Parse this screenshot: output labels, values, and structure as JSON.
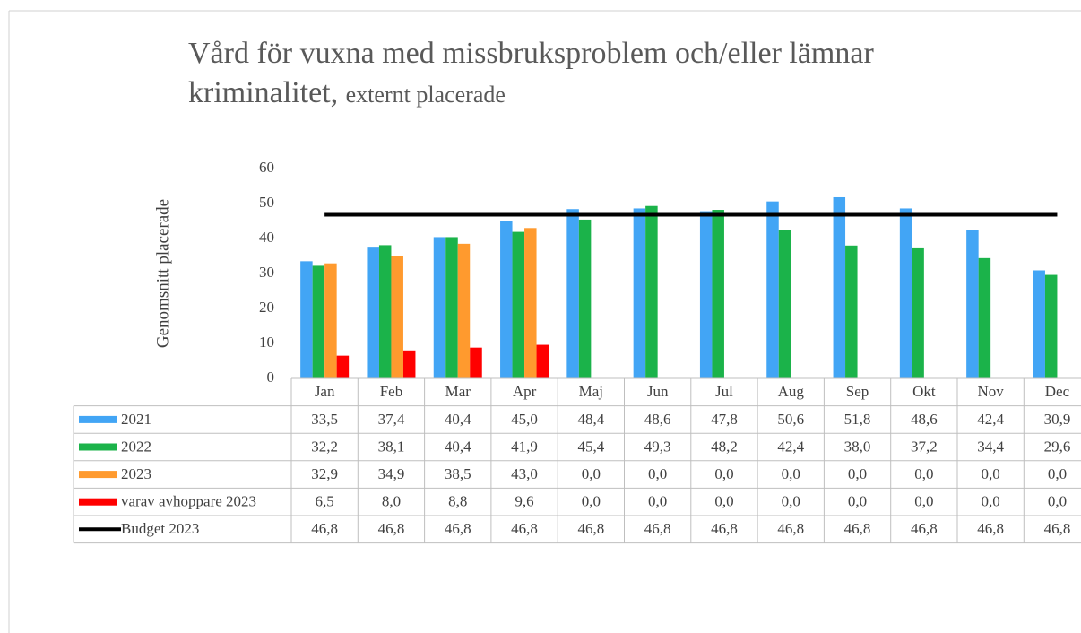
{
  "chart_data": {
    "type": "bar",
    "title": "Vård för vuxna med missbruksproblem och/eller lämnar kriminalitet,",
    "subtitle": "externt placerade",
    "y_label": "Genomsnitt placerade",
    "categories": [
      "Jan",
      "Feb",
      "Mar",
      "Apr",
      "Maj",
      "Jun",
      "Jul",
      "Aug",
      "Sep",
      "Okt",
      "Nov",
      "Dec"
    ],
    "ylim": [
      0,
      60
    ],
    "yticks": [
      0,
      10,
      20,
      30,
      40,
      50,
      60
    ],
    "data_table": true,
    "series": [
      {
        "name": "2021",
        "color": "#42a5f5",
        "kind": "bar",
        "values": [
          33.5,
          37.4,
          40.4,
          45.0,
          48.4,
          48.6,
          47.8,
          50.6,
          51.8,
          48.6,
          42.4,
          30.9
        ],
        "value_labels": [
          "33,5",
          "37,4",
          "40,4",
          "45,0",
          "48,4",
          "48,6",
          "47,8",
          "50,6",
          "51,8",
          "48,6",
          "42,4",
          "30,9"
        ]
      },
      {
        "name": "2022",
        "color": "#1bb34a",
        "kind": "bar",
        "values": [
          32.2,
          38.1,
          40.4,
          41.9,
          45.4,
          49.3,
          48.2,
          42.4,
          38.0,
          37.2,
          34.4,
          29.6
        ],
        "value_labels": [
          "32,2",
          "38,1",
          "40,4",
          "41,9",
          "45,4",
          "49,3",
          "48,2",
          "42,4",
          "38,0",
          "37,2",
          "34,4",
          "29,6"
        ]
      },
      {
        "name": "2023",
        "color": "#ff9a2e",
        "kind": "bar",
        "values": [
          32.9,
          34.9,
          38.5,
          43.0,
          0,
          0,
          0,
          0,
          0,
          0,
          0,
          0
        ],
        "value_labels": [
          "32,9",
          "34,9",
          "38,5",
          "43,0",
          "0,0",
          "0,0",
          "0,0",
          "0,0",
          "0,0",
          "0,0",
          "0,0",
          "0,0"
        ]
      },
      {
        "name": "varav avhoppare 2023",
        "color": "#ff0000",
        "kind": "bar",
        "values": [
          6.5,
          8.0,
          8.8,
          9.6,
          0,
          0,
          0,
          0,
          0,
          0,
          0,
          0
        ],
        "value_labels": [
          "6,5",
          "8,0",
          "8,8",
          "9,6",
          "0,0",
          "0,0",
          "0,0",
          "0,0",
          "0,0",
          "0,0",
          "0,0",
          "0,0"
        ]
      },
      {
        "name": "Budget 2023",
        "color": "#000000",
        "kind": "line",
        "values": [
          46.8,
          46.8,
          46.8,
          46.8,
          46.8,
          46.8,
          46.8,
          46.8,
          46.8,
          46.8,
          46.8,
          46.8
        ],
        "value_labels": [
          "46,8",
          "46,8",
          "46,8",
          "46,8",
          "46,8",
          "46,8",
          "46,8",
          "46,8",
          "46,8",
          "46,8",
          "46,8",
          "46,8"
        ]
      }
    ]
  }
}
